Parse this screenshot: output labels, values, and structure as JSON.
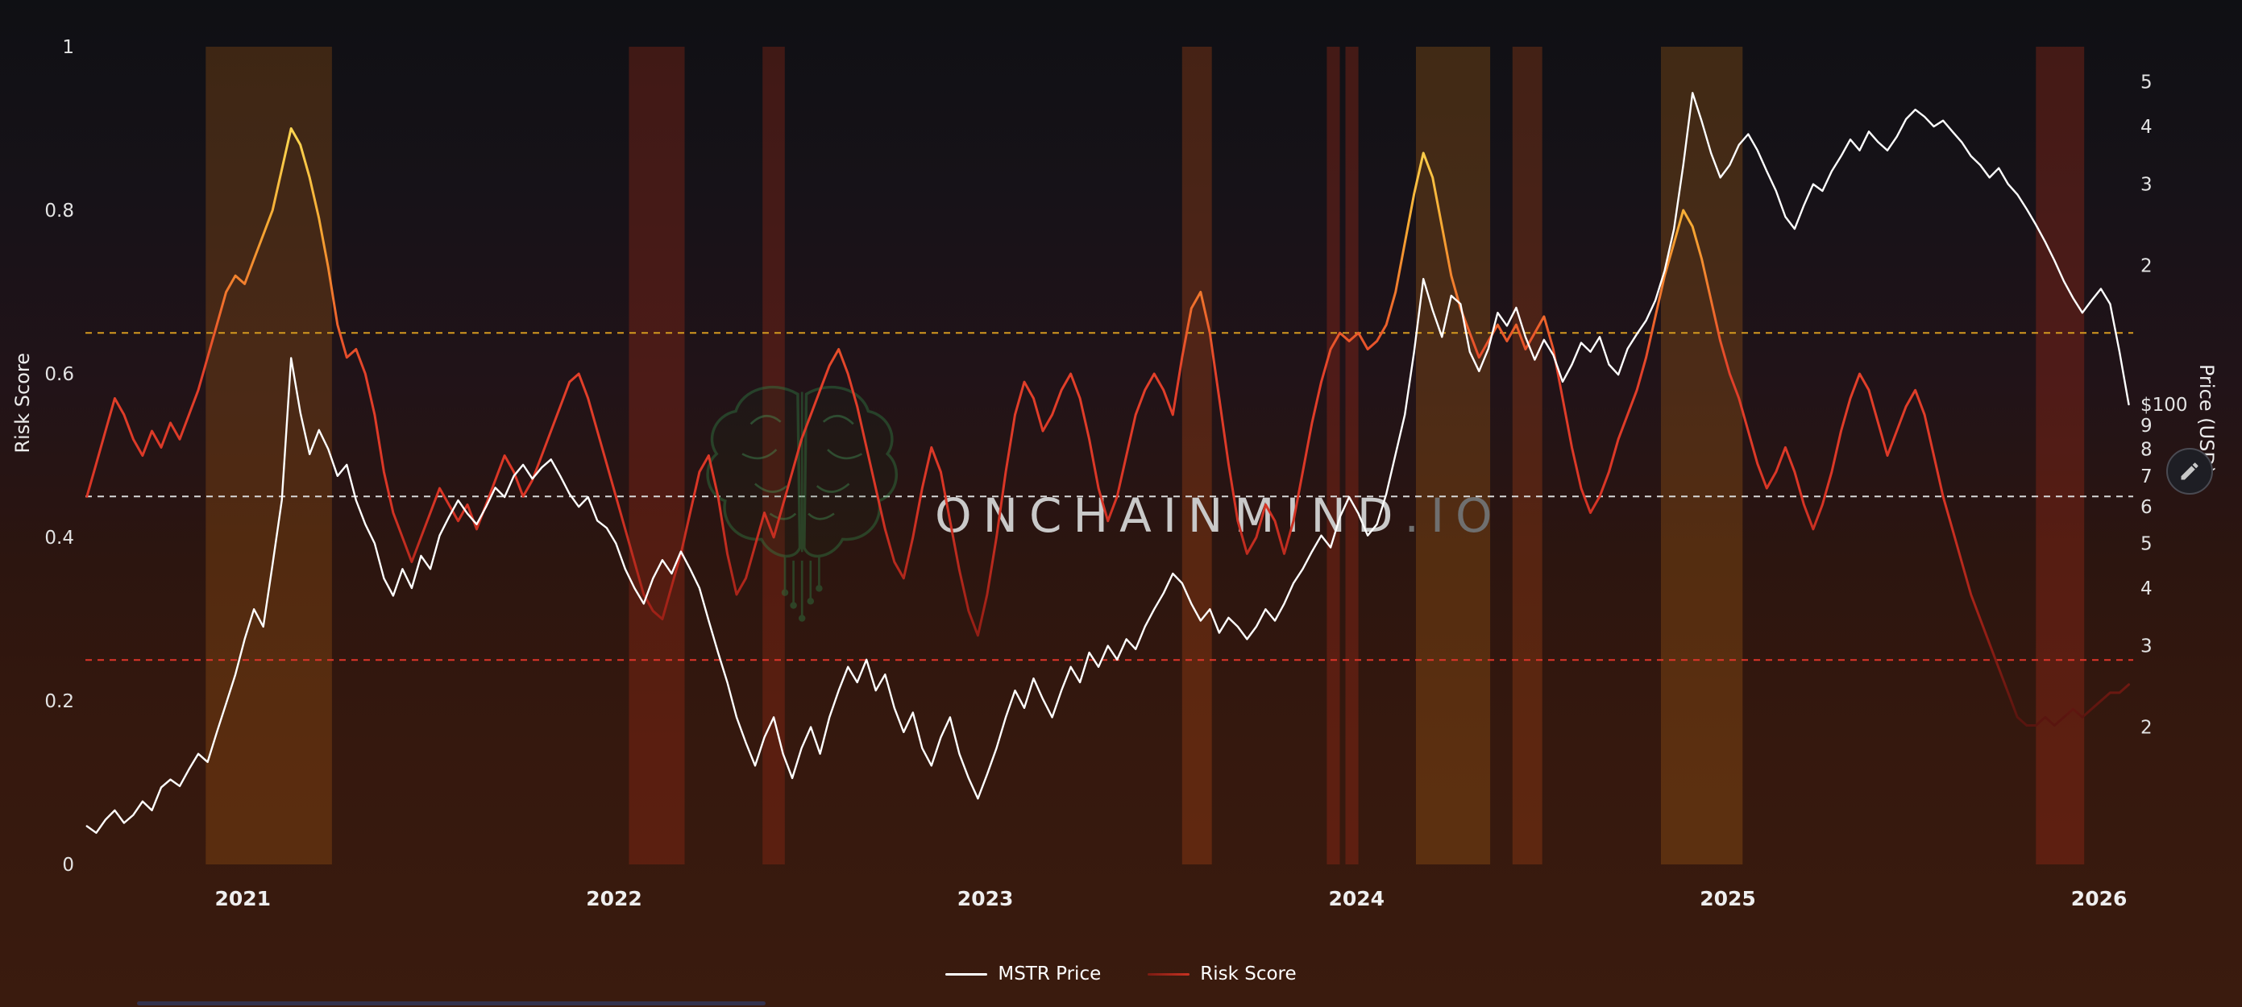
{
  "watermark": {
    "brand": "ONCHAINMIND",
    "tld": ".IO"
  },
  "axes": {
    "left": {
      "label": "Risk Score"
    },
    "right": {
      "label": "Price (USD)"
    }
  },
  "legend": {
    "items": [
      {
        "label": "MSTR Price",
        "color": "#ffffff"
      },
      {
        "label": "Risk Score",
        "color": "linear-gradient(90deg,#7a1b12,#c93222)"
      }
    ]
  },
  "edit_button": {
    "icon": "pencil-icon"
  },
  "chart_data": {
    "type": "line",
    "x_unit": "year",
    "x_domain": [
      2020.576,
      2026.092
    ],
    "x_ticks": [
      2021,
      2022,
      2023,
      2024,
      2025,
      2026
    ],
    "x_start": 2020.58,
    "x_step": 0.025,
    "left_axis": {
      "label": "Risk Score",
      "range": [
        0,
        1
      ],
      "ticks": [
        1,
        0.8,
        0.6,
        0.4,
        0.2,
        0
      ]
    },
    "right_axis": {
      "label": "Price (USD)",
      "scale": "log",
      "range": [
        10,
        594
      ],
      "ticks": [
        {
          "label": "5",
          "value": 500
        },
        {
          "label": "4",
          "value": 400
        },
        {
          "label": "3",
          "value": 300
        },
        {
          "label": "2",
          "value": 200
        },
        {
          "label": "$100",
          "value": 100
        },
        {
          "label": "9",
          "value": 90
        },
        {
          "label": "8",
          "value": 80
        },
        {
          "label": "7",
          "value": 70
        },
        {
          "label": "6",
          "value": 60
        },
        {
          "label": "5",
          "value": 50
        },
        {
          "label": "4",
          "value": 40
        },
        {
          "label": "3",
          "value": 30
        },
        {
          "label": "2",
          "value": 20
        }
      ]
    },
    "reference_lines": [
      {
        "axis": "left",
        "value": 0.65,
        "color": "#d4991f",
        "style": "dashed"
      },
      {
        "axis": "left",
        "value": 0.45,
        "color": "#d8d8d8",
        "style": "dashed"
      },
      {
        "axis": "left",
        "value": 0.25,
        "color": "#e0352a",
        "style": "dashed"
      }
    ],
    "bands": [
      {
        "from": 2020.9,
        "to": 2021.24,
        "color": "#c06a14",
        "opacity": 0.26
      },
      {
        "from": 2022.04,
        "to": 2022.19,
        "color": "#b03018",
        "opacity": 0.3
      },
      {
        "from": 2022.4,
        "to": 2022.46,
        "color": "#b03018",
        "opacity": 0.3
      },
      {
        "from": 2023.53,
        "to": 2023.61,
        "color": "#b84a16",
        "opacity": 0.32
      },
      {
        "from": 2023.92,
        "to": 2023.955,
        "color": "#b03018",
        "opacity": 0.32
      },
      {
        "from": 2023.97,
        "to": 2024.005,
        "color": "#b03018",
        "opacity": 0.32
      },
      {
        "from": 2024.16,
        "to": 2024.36,
        "color": "#c06a14",
        "opacity": 0.28
      },
      {
        "from": 2024.42,
        "to": 2024.5,
        "color": "#b84a16",
        "opacity": 0.3
      },
      {
        "from": 2024.82,
        "to": 2025.04,
        "color": "#c06a14",
        "opacity": 0.28
      },
      {
        "from": 2025.83,
        "to": 2025.96,
        "color": "#b03018",
        "opacity": 0.32
      }
    ],
    "risk_gradient": [
      {
        "at": 0.0,
        "color": "#3f100c"
      },
      {
        "at": 0.18,
        "color": "#5a150f"
      },
      {
        "at": 0.3,
        "color": "#9c2016"
      },
      {
        "at": 0.45,
        "color": "#d93526"
      },
      {
        "at": 0.6,
        "color": "#e2402a"
      },
      {
        "at": 0.68,
        "color": "#ef6c2c"
      },
      {
        "at": 0.78,
        "color": "#f6a833"
      },
      {
        "at": 0.88,
        "color": "#fbd14d"
      },
      {
        "at": 1.0,
        "color": "#ffe066"
      }
    ],
    "series": [
      {
        "name": "MSTR Price",
        "axis": "right",
        "scale": "log",
        "color": "#ffffff",
        "values": [
          12.2,
          11.8,
          12.6,
          13.2,
          12.4,
          12.9,
          13.8,
          13.2,
          14.8,
          15.4,
          14.9,
          16.2,
          17.5,
          16.8,
          19.5,
          22.5,
          26,
          31,
          36,
          33,
          45,
          62,
          126,
          96,
          78,
          88,
          80,
          70,
          74,
          62,
          55,
          50,
          42,
          38.5,
          44,
          40,
          47,
          44,
          52,
          57,
          62,
          58,
          55,
          60,
          66,
          63,
          70,
          74,
          69,
          73,
          76,
          70,
          64,
          60,
          63,
          56,
          54,
          50,
          44,
          40,
          37,
          42,
          46,
          43,
          48,
          44,
          40,
          34,
          29,
          25,
          21,
          18.5,
          16.5,
          19,
          21,
          17.5,
          15.5,
          18,
          20,
          17.5,
          21,
          24,
          27,
          25,
          28,
          24,
          26,
          22,
          19.5,
          21.5,
          18,
          16.5,
          19,
          21,
          17.5,
          15.5,
          14,
          15.8,
          18,
          21,
          24,
          22,
          25.5,
          23,
          21,
          24,
          27,
          25,
          29,
          27,
          30,
          28,
          31,
          29.5,
          33,
          36,
          39,
          43,
          41,
          37,
          34,
          36,
          32,
          34.5,
          33,
          31,
          33,
          36,
          34,
          37,
          41,
          44,
          48,
          52,
          49,
          57,
          63,
          58,
          52,
          55,
          64,
          78,
          95,
          130,
          187,
          160,
          140,
          172,
          165,
          130,
          118,
          132,
          158,
          148,
          162,
          140,
          125,
          138,
          128,
          112,
          122,
          136,
          130,
          140,
          122,
          116,
          132,
          142,
          152,
          168,
          195,
          240,
          330,
          473,
          410,
          350,
          310,
          330,
          365,
          385,
          355,
          320,
          290,
          255,
          240,
          270,
          300,
          290,
          320,
          345,
          375,
          355,
          390,
          370,
          355,
          380,
          415,
          435,
          420,
          400,
          412,
          390,
          370,
          345,
          330,
          310,
          325,
          300,
          285,
          265,
          245,
          225,
          205,
          185,
          170,
          158,
          168,
          178,
          165,
          130,
          100
        ]
      },
      {
        "name": "Risk Score",
        "axis": "left",
        "scale": "linear",
        "color": "gradient:risk",
        "values": [
          0.45,
          0.49,
          0.53,
          0.57,
          0.55,
          0.52,
          0.5,
          0.53,
          0.51,
          0.54,
          0.52,
          0.55,
          0.58,
          0.62,
          0.66,
          0.7,
          0.72,
          0.71,
          0.74,
          0.77,
          0.8,
          0.85,
          0.9,
          0.88,
          0.84,
          0.79,
          0.73,
          0.66,
          0.62,
          0.63,
          0.6,
          0.55,
          0.48,
          0.43,
          0.4,
          0.37,
          0.4,
          0.43,
          0.46,
          0.44,
          0.42,
          0.44,
          0.41,
          0.44,
          0.47,
          0.5,
          0.48,
          0.45,
          0.47,
          0.5,
          0.53,
          0.56,
          0.59,
          0.6,
          0.57,
          0.53,
          0.49,
          0.45,
          0.41,
          0.37,
          0.33,
          0.31,
          0.3,
          0.34,
          0.38,
          0.43,
          0.48,
          0.5,
          0.45,
          0.38,
          0.33,
          0.35,
          0.39,
          0.43,
          0.4,
          0.44,
          0.48,
          0.52,
          0.55,
          0.58,
          0.61,
          0.63,
          0.6,
          0.56,
          0.51,
          0.46,
          0.41,
          0.37,
          0.35,
          0.4,
          0.46,
          0.51,
          0.48,
          0.42,
          0.36,
          0.31,
          0.28,
          0.33,
          0.4,
          0.48,
          0.55,
          0.59,
          0.57,
          0.53,
          0.55,
          0.58,
          0.6,
          0.57,
          0.52,
          0.46,
          0.42,
          0.45,
          0.5,
          0.55,
          0.58,
          0.6,
          0.58,
          0.55,
          0.62,
          0.68,
          0.7,
          0.65,
          0.57,
          0.49,
          0.42,
          0.38,
          0.4,
          0.44,
          0.42,
          0.38,
          0.42,
          0.48,
          0.54,
          0.59,
          0.63,
          0.65,
          0.64,
          0.65,
          0.63,
          0.64,
          0.66,
          0.7,
          0.76,
          0.82,
          0.87,
          0.84,
          0.78,
          0.72,
          0.68,
          0.65,
          0.62,
          0.64,
          0.66,
          0.64,
          0.66,
          0.63,
          0.65,
          0.67,
          0.63,
          0.57,
          0.51,
          0.46,
          0.43,
          0.45,
          0.48,
          0.52,
          0.55,
          0.58,
          0.62,
          0.67,
          0.72,
          0.76,
          0.8,
          0.78,
          0.74,
          0.69,
          0.64,
          0.6,
          0.57,
          0.53,
          0.49,
          0.46,
          0.48,
          0.51,
          0.48,
          0.44,
          0.41,
          0.44,
          0.48,
          0.53,
          0.57,
          0.6,
          0.58,
          0.54,
          0.5,
          0.53,
          0.56,
          0.58,
          0.55,
          0.5,
          0.45,
          0.41,
          0.37,
          0.33,
          0.3,
          0.27,
          0.24,
          0.21,
          0.18,
          0.17,
          0.17,
          0.18,
          0.17,
          0.18,
          0.19,
          0.18,
          0.19,
          0.2,
          0.21,
          0.21,
          0.22
        ]
      }
    ]
  }
}
